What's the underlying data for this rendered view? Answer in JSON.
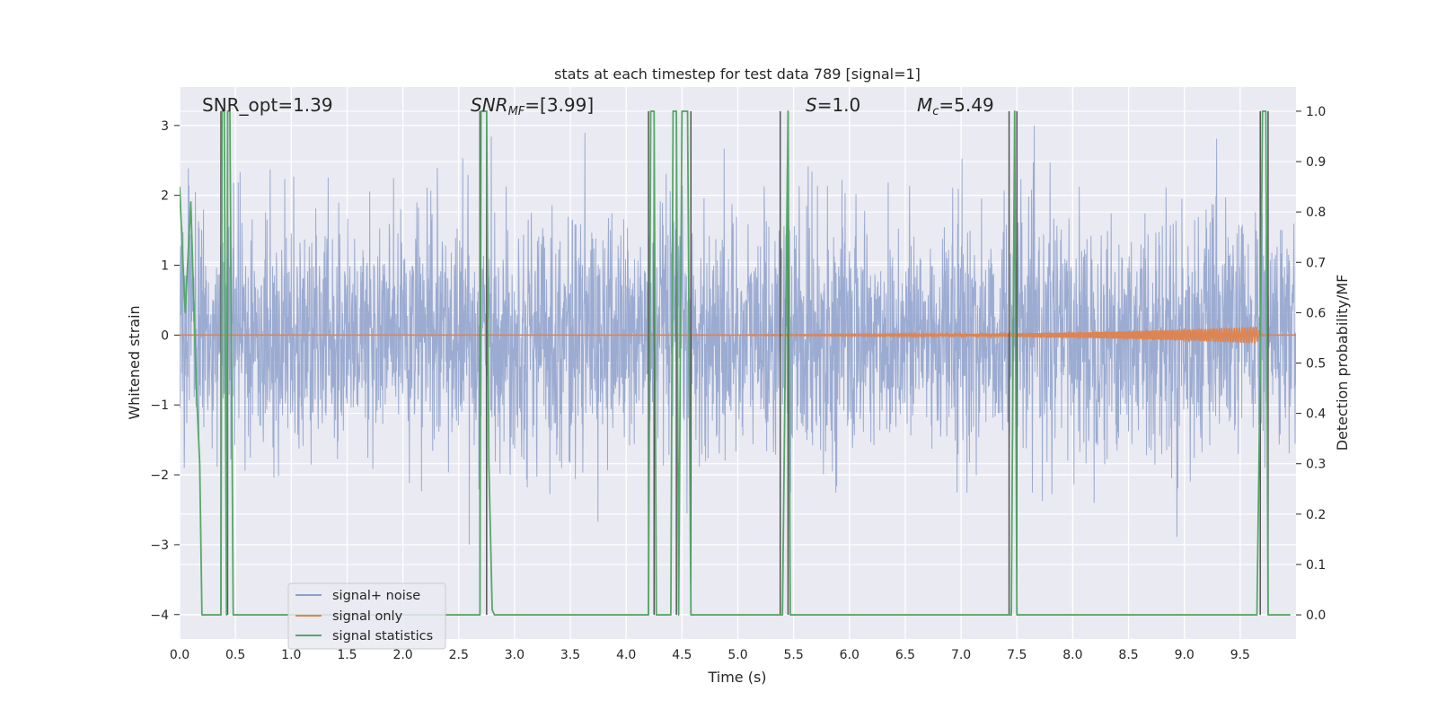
{
  "chart_data": {
    "type": "line",
    "title": "stats at each timestep for test data 789 [signal=1]",
    "xlabel": "Time (s)",
    "ylabel": "Whitened strain",
    "y2label": "Detection probability/MF",
    "xlim": [
      0,
      10
    ],
    "ylim": [
      -4.35,
      3.55
    ],
    "y2lim": [
      -0.048,
      1.048
    ],
    "x_ticks": [
      "0.0",
      "0.5",
      "1.0",
      "1.5",
      "2.0",
      "2.5",
      "3.0",
      "3.5",
      "4.0",
      "4.5",
      "5.0",
      "5.5",
      "6.0",
      "6.5",
      "7.0",
      "7.5",
      "8.0",
      "8.5",
      "9.0",
      "9.5"
    ],
    "y_ticks": [
      "3",
      "2",
      "1",
      "0",
      "−1",
      "−2",
      "−3",
      "−4"
    ],
    "y2_ticks": [
      "1.0",
      "0.9",
      "0.8",
      "0.7",
      "0.6",
      "0.5",
      "0.4",
      "0.3",
      "0.2",
      "0.1",
      "0.0"
    ],
    "annotations": {
      "snr_opt": "SNR_opt=1.39",
      "snr_mf_sym": "SNR",
      "snr_mf_sub": "MF",
      "snr_mf_val": "=[3.99]",
      "s_sym": "S",
      "s_val": "=1.0",
      "mc_sym": "M",
      "mc_sub": "c",
      "mc_val": "=5.49"
    },
    "legend": {
      "position": "lower-left",
      "entries": [
        "signal+ noise",
        "signal only",
        "signal statistics"
      ]
    },
    "grid": true,
    "series": [
      {
        "name": "signal+ noise",
        "color": "#8da0cb",
        "axis": "left",
        "description_values": "dense white noise around 0, amplitude approx ±1.8 with peaks to ±3"
      },
      {
        "name": "signal only",
        "color": "#dd8452",
        "axis": "left",
        "chirp_peak_time": 9.65,
        "chirp_peak_amplitude": 0.12
      },
      {
        "name": "signal statistics",
        "color": "#55a868",
        "axis": "right",
        "x": [
          0.0,
          0.05,
          0.1,
          0.15,
          0.18,
          0.2,
          0.37,
          0.38,
          0.4,
          0.42,
          0.43,
          0.45,
          0.48,
          0.5,
          0.55,
          2.69,
          2.7,
          2.75,
          2.77,
          2.8,
          2.82,
          2.85,
          2.9,
          3.0,
          4.18,
          4.2,
          4.22,
          4.25,
          4.27,
          4.3,
          4.4,
          4.42,
          4.45,
          4.47,
          4.5,
          4.55,
          4.58,
          4.6,
          4.62,
          4.65,
          5.38,
          5.4,
          5.45,
          5.47,
          5.5,
          7.43,
          7.45,
          7.48,
          7.5,
          7.55,
          9.6,
          9.65,
          9.68,
          9.7,
          9.73,
          9.75,
          9.78,
          9.82,
          9.95
        ],
        "values": [
          0.85,
          0.6,
          0.82,
          0.45,
          0.3,
          0.0,
          0.0,
          1.0,
          1.0,
          0.0,
          1.0,
          1.0,
          0.0,
          0.0,
          0.0,
          0.0,
          1.0,
          1.0,
          0.3,
          0.01,
          0.0,
          0.0,
          0.0,
          0.0,
          0.0,
          0.0,
          1.0,
          1.0,
          0.0,
          0.0,
          0.0,
          1.0,
          1.0,
          0.0,
          1.0,
          1.0,
          0.0,
          0.0,
          0.0,
          0.0,
          0.0,
          0.0,
          1.0,
          0.0,
          0.0,
          0.0,
          0.0,
          1.0,
          0.0,
          0.0,
          0.0,
          0.0,
          0.5,
          1.0,
          1.0,
          0.0,
          0.0,
          0.0,
          0.0
        ]
      }
    ],
    "vlines_x": [
      0.37,
      0.43,
      2.69,
      2.75,
      4.2,
      4.25,
      4.45,
      4.58,
      5.38,
      5.45,
      7.43,
      7.5,
      9.68,
      9.75
    ],
    "vline_color": "#555555"
  }
}
